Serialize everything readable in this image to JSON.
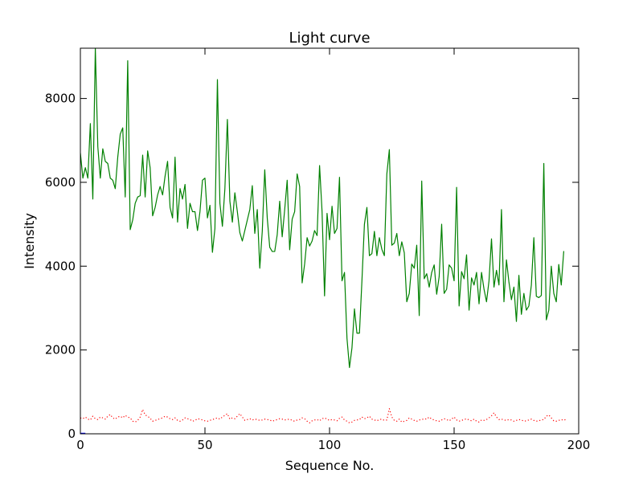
{
  "chart_data": {
    "type": "line",
    "title": "Light curve",
    "xlabel": "Sequence No.",
    "ylabel": "Intensity",
    "xlim": [
      0,
      200
    ],
    "ylim": [
      0,
      9200
    ],
    "xticks": [
      0,
      50,
      100,
      150,
      200
    ],
    "yticks": [
      0,
      2000,
      4000,
      6000,
      8000
    ],
    "grid": false,
    "series": [
      {
        "color": "#008000",
        "style": "solid",
        "y": [
          6700,
          6100,
          6350,
          6100,
          7400,
          5600,
          9200,
          6850,
          6100,
          6800,
          6500,
          6450,
          6100,
          6050,
          5850,
          6600,
          7150,
          7300,
          5650,
          8900,
          4870,
          5100,
          5500,
          5650,
          5680,
          6650,
          5650,
          6750,
          6350,
          5200,
          5400,
          5700,
          5900,
          5700,
          6150,
          6500,
          5400,
          5150,
          6600,
          5050,
          5850,
          5600,
          5950,
          4900,
          5500,
          5300,
          5300,
          4850,
          5300,
          6050,
          6100,
          5150,
          5450,
          4330,
          4900,
          8450,
          5500,
          4950,
          5850,
          7500,
          5550,
          5050,
          5750,
          5300,
          4800,
          4600,
          4850,
          5100,
          5350,
          5920,
          4780,
          5350,
          3950,
          4830,
          6300,
          5150,
          4450,
          4350,
          4350,
          4750,
          5550,
          4700,
          5350,
          6050,
          4390,
          5120,
          5300,
          6200,
          5900,
          3600,
          4050,
          4680,
          4480,
          4600,
          4850,
          4730,
          6400,
          5300,
          3290,
          5260,
          4630,
          5430,
          4780,
          4900,
          6120,
          3650,
          3850,
          2280,
          1580,
          2050,
          2980,
          2400,
          2400,
          3650,
          5000,
          5400,
          4250,
          4300,
          4830,
          4250,
          4680,
          4400,
          4250,
          6200,
          6780,
          4500,
          4550,
          4780,
          4250,
          4580,
          4320,
          3150,
          3350,
          4050,
          3950,
          4500,
          2820,
          6030,
          3700,
          3820,
          3500,
          3850,
          4030,
          3330,
          3750,
          5000,
          3350,
          3450,
          4030,
          3950,
          3650,
          5880,
          3050,
          3870,
          3700,
          4270,
          2950,
          3720,
          3550,
          3850,
          3100,
          3850,
          3450,
          3150,
          3650,
          4650,
          3500,
          3900,
          3550,
          5350,
          3150,
          4150,
          3620,
          3200,
          3500,
          2680,
          3780,
          2850,
          3350,
          2950,
          3050,
          3550,
          4680,
          3280,
          3250,
          3300,
          6450,
          2720,
          2950,
          4000,
          3350,
          3150,
          4040,
          3550,
          4360
        ]
      },
      {
        "color": "#ff0000",
        "style": "dotted",
        "y": [
          380,
          360,
          400,
          350,
          330,
          420,
          360,
          340,
          400,
          380,
          350,
          420,
          460,
          380,
          350,
          400,
          420,
          380,
          440,
          400,
          380,
          300,
          280,
          320,
          400,
          580,
          450,
          420,
          370,
          300,
          320,
          340,
          360,
          380,
          420,
          400,
          360,
          340,
          380,
          320,
          300,
          330,
          380,
          360,
          340,
          300,
          320,
          360,
          350,
          330,
          310,
          300,
          320,
          340,
          360,
          380,
          350,
          400,
          440,
          480,
          350,
          380,
          360,
          420,
          480,
          400,
          320,
          340,
          360,
          330,
          350,
          340,
          320,
          330,
          350,
          340,
          330,
          300,
          320,
          340,
          360,
          350,
          330,
          340,
          350,
          320,
          300,
          330,
          340,
          380,
          360,
          300,
          260,
          310,
          330,
          340,
          310,
          360,
          380,
          350,
          320,
          340,
          330,
          310,
          370,
          400,
          330,
          300,
          260,
          280,
          320,
          330,
          340,
          400,
          360,
          380,
          420,
          350,
          330,
          310,
          340,
          350,
          320,
          330,
          600,
          400,
          320,
          300,
          350,
          280,
          300,
          320,
          380,
          350,
          320,
          300,
          330,
          340,
          360,
          350,
          400,
          350,
          330,
          310,
          300,
          330,
          360,
          340,
          310,
          350,
          400,
          330,
          300,
          320,
          340,
          360,
          330,
          310,
          350,
          300,
          280,
          330,
          320,
          340,
          380,
          430,
          500,
          400,
          340,
          350,
          330,
          320,
          340,
          330,
          300,
          320,
          340,
          330,
          300,
          310,
          330,
          350,
          320,
          300,
          310,
          330,
          340,
          420,
          450,
          380,
          310,
          300,
          320,
          340,
          320,
          350
        ]
      },
      {
        "color": "#0000ff",
        "style": "solid",
        "y": [
          0,
          0,
          0
        ]
      }
    ]
  }
}
